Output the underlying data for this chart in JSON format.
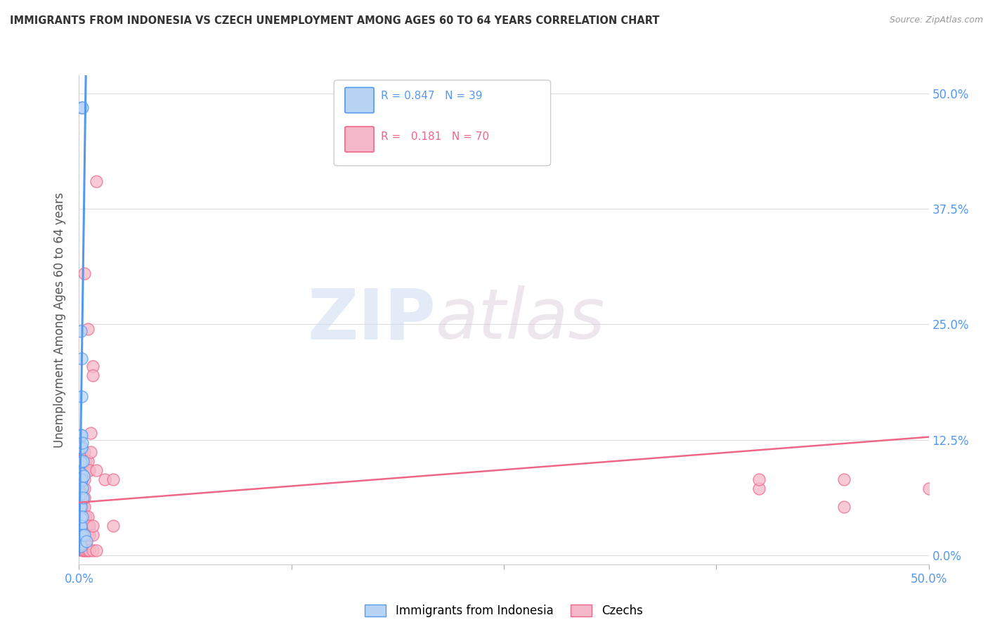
{
  "title": "IMMIGRANTS FROM INDONESIA VS CZECH UNEMPLOYMENT AMONG AGES 60 TO 64 YEARS CORRELATION CHART",
  "source": "Source: ZipAtlas.com",
  "ylabel": "Unemployment Among Ages 60 to 64 years",
  "xlim": [
    0,
    0.5
  ],
  "ylim": [
    -0.01,
    0.52
  ],
  "legend_blue_r": "0.847",
  "legend_blue_n": "39",
  "legend_pink_r": "0.181",
  "legend_pink_n": "70",
  "legend_label_blue": "Immigrants from Indonesia",
  "legend_label_pink": "Czechs",
  "watermark_zip": "ZIP",
  "watermark_atlas": "atlas",
  "blue_color": "#b8d4f5",
  "pink_color": "#f5b8c8",
  "blue_edge_color": "#5599ee",
  "pink_edge_color": "#ee6688",
  "blue_scatter": [
    [
      0.0015,
      0.485
    ],
    [
      0.002,
      0.485
    ],
    [
      0.0012,
      0.243
    ],
    [
      0.0014,
      0.213
    ],
    [
      0.0013,
      0.172
    ],
    [
      0.001,
      0.13
    ],
    [
      0.0015,
      0.13
    ],
    [
      0.001,
      0.116
    ],
    [
      0.0013,
      0.118
    ],
    [
      0.0016,
      0.116
    ],
    [
      0.0009,
      0.102
    ],
    [
      0.0012,
      0.1
    ],
    [
      0.0008,
      0.09
    ],
    [
      0.0013,
      0.088
    ],
    [
      0.0008,
      0.082
    ],
    [
      0.0011,
      0.08
    ],
    [
      0.0014,
      0.082
    ],
    [
      0.0007,
      0.068
    ],
    [
      0.0012,
      0.066
    ],
    [
      0.0007,
      0.053
    ],
    [
      0.001,
      0.052
    ],
    [
      0.0008,
      0.042
    ],
    [
      0.0011,
      0.04
    ],
    [
      0.0006,
      0.032
    ],
    [
      0.0009,
      0.03
    ],
    [
      0.0012,
      0.032
    ],
    [
      0.0007,
      0.022
    ],
    [
      0.001,
      0.02
    ],
    [
      0.0006,
      0.012
    ],
    [
      0.0009,
      0.01
    ],
    [
      0.0018,
      0.122
    ],
    [
      0.0021,
      0.102
    ],
    [
      0.0019,
      0.073
    ],
    [
      0.0022,
      0.062
    ],
    [
      0.002,
      0.042
    ],
    [
      0.0019,
      0.022
    ],
    [
      0.0028,
      0.086
    ],
    [
      0.0031,
      0.022
    ],
    [
      0.0042,
      0.015
    ]
  ],
  "pink_scatter": [
    [
      0.001,
      0.006
    ],
    [
      0.001,
      0.012
    ],
    [
      0.001,
      0.022
    ],
    [
      0.001,
      0.032
    ],
    [
      0.0012,
      0.042
    ],
    [
      0.0013,
      0.052
    ],
    [
      0.0014,
      0.062
    ],
    [
      0.0015,
      0.072
    ],
    [
      0.0016,
      0.082
    ],
    [
      0.002,
      0.005
    ],
    [
      0.002,
      0.012
    ],
    [
      0.002,
      0.022
    ],
    [
      0.002,
      0.032
    ],
    [
      0.002,
      0.042
    ],
    [
      0.002,
      0.052
    ],
    [
      0.002,
      0.062
    ],
    [
      0.002,
      0.072
    ],
    [
      0.002,
      0.082
    ],
    [
      0.002,
      0.092
    ],
    [
      0.002,
      0.105
    ],
    [
      0.002,
      0.113
    ],
    [
      0.003,
      0.005
    ],
    [
      0.003,
      0.012
    ],
    [
      0.003,
      0.022
    ],
    [
      0.003,
      0.032
    ],
    [
      0.003,
      0.042
    ],
    [
      0.003,
      0.052
    ],
    [
      0.003,
      0.062
    ],
    [
      0.003,
      0.072
    ],
    [
      0.003,
      0.082
    ],
    [
      0.003,
      0.092
    ],
    [
      0.003,
      0.102
    ],
    [
      0.003,
      0.112
    ],
    [
      0.003,
      0.305
    ],
    [
      0.004,
      0.005
    ],
    [
      0.004,
      0.012
    ],
    [
      0.004,
      0.022
    ],
    [
      0.004,
      0.032
    ],
    [
      0.004,
      0.042
    ],
    [
      0.004,
      0.092
    ],
    [
      0.004,
      0.102
    ],
    [
      0.005,
      0.005
    ],
    [
      0.005,
      0.022
    ],
    [
      0.005,
      0.032
    ],
    [
      0.005,
      0.042
    ],
    [
      0.005,
      0.092
    ],
    [
      0.005,
      0.102
    ],
    [
      0.005,
      0.245
    ],
    [
      0.006,
      0.005
    ],
    [
      0.006,
      0.022
    ],
    [
      0.006,
      0.032
    ],
    [
      0.006,
      0.092
    ],
    [
      0.007,
      0.132
    ],
    [
      0.007,
      0.112
    ],
    [
      0.008,
      0.005
    ],
    [
      0.008,
      0.022
    ],
    [
      0.008,
      0.032
    ],
    [
      0.008,
      0.205
    ],
    [
      0.008,
      0.195
    ],
    [
      0.01,
      0.005
    ],
    [
      0.01,
      0.092
    ],
    [
      0.01,
      0.405
    ],
    [
      0.015,
      0.082
    ],
    [
      0.02,
      0.032
    ],
    [
      0.02,
      0.082
    ],
    [
      0.4,
      0.072
    ],
    [
      0.4,
      0.082
    ],
    [
      0.45,
      0.052
    ],
    [
      0.45,
      0.082
    ],
    [
      0.5,
      0.072
    ]
  ],
  "blue_trendline_x": [
    0.0,
    0.004
  ],
  "blue_trendline_y": [
    0.0,
    0.52
  ],
  "pink_trendline_x": [
    0.0,
    0.5
  ],
  "pink_trendline_y": [
    0.057,
    0.128
  ]
}
